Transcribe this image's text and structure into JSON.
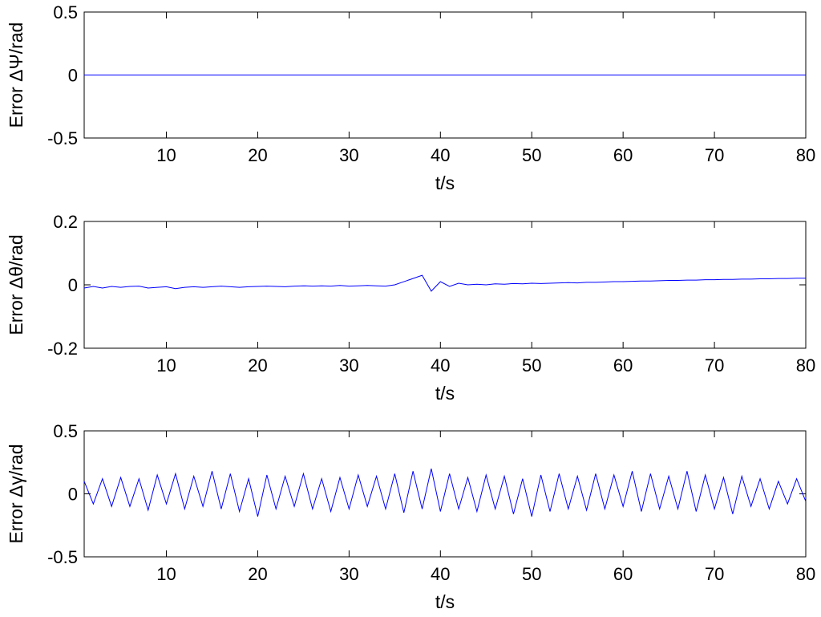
{
  "figure": {
    "background": "#ffffff",
    "line_color": "#0000ff"
  },
  "chart_data": [
    {
      "type": "line",
      "xlabel": "t/s",
      "ylabel": "Error ΔΨ/rad",
      "xlim": [
        1,
        80
      ],
      "ylim": [
        -0.5,
        0.5
      ],
      "xticks": [
        10,
        20,
        30,
        40,
        50,
        60,
        70,
        80
      ],
      "yticks": [
        -0.5,
        0,
        0.5
      ],
      "ytick_labels": [
        "-0.5",
        "0",
        "0.5"
      ],
      "grid": false,
      "series": [
        {
          "color": "#0000ff",
          "x": [
            1,
            80
          ],
          "y": [
            0,
            0
          ]
        }
      ]
    },
    {
      "type": "line",
      "xlabel": "t/s",
      "ylabel": "Error Δθ/rad",
      "xlim": [
        1,
        80
      ],
      "ylim": [
        -0.2,
        0.2
      ],
      "xticks": [
        10,
        20,
        30,
        40,
        50,
        60,
        70,
        80
      ],
      "yticks": [
        -0.2,
        0,
        0.2
      ],
      "ytick_labels": [
        "-0.2",
        "0",
        "0.2"
      ],
      "grid": false,
      "series": [
        {
          "color": "#0000ff",
          "x": [
            1,
            2,
            3,
            4,
            5,
            6,
            7,
            8,
            9,
            10,
            11,
            12,
            13,
            14,
            15,
            16,
            17,
            18,
            19,
            20,
            21,
            22,
            23,
            24,
            25,
            26,
            27,
            28,
            29,
            30,
            31,
            32,
            33,
            34,
            35,
            36,
            37,
            38,
            39,
            40,
            41,
            42,
            43,
            44,
            45,
            46,
            47,
            48,
            49,
            50,
            51,
            52,
            53,
            54,
            55,
            56,
            57,
            58,
            59,
            60,
            61,
            62,
            63,
            64,
            65,
            66,
            67,
            68,
            69,
            70,
            71,
            72,
            73,
            74,
            75,
            76,
            77,
            78,
            79,
            80
          ],
          "y": [
            -0.01,
            -0.005,
            -0.01,
            -0.005,
            -0.008,
            -0.005,
            -0.004,
            -0.01,
            -0.008,
            -0.006,
            -0.012,
            -0.008,
            -0.006,
            -0.008,
            -0.006,
            -0.004,
            -0.006,
            -0.008,
            -0.006,
            -0.005,
            -0.004,
            -0.005,
            -0.006,
            -0.004,
            -0.003,
            -0.004,
            -0.003,
            -0.004,
            -0.002,
            -0.004,
            -0.003,
            -0.002,
            -0.003,
            -0.004,
            0.0,
            0.01,
            0.02,
            0.03,
            -0.02,
            0.01,
            -0.005,
            0.005,
            0.0,
            0.002,
            0.0,
            0.003,
            0.002,
            0.004,
            0.003,
            0.005,
            0.004,
            0.005,
            0.006,
            0.007,
            0.006,
            0.008,
            0.008,
            0.009,
            0.01,
            0.01,
            0.011,
            0.012,
            0.012,
            0.013,
            0.014,
            0.014,
            0.015,
            0.015,
            0.016,
            0.016,
            0.017,
            0.017,
            0.018,
            0.018,
            0.019,
            0.019,
            0.02,
            0.02,
            0.021,
            0.021
          ]
        }
      ]
    },
    {
      "type": "line",
      "xlabel": "t/s",
      "ylabel": "Error Δγ/rad",
      "xlim": [
        1,
        80
      ],
      "ylim": [
        -0.5,
        0.5
      ],
      "xticks": [
        10,
        20,
        30,
        40,
        50,
        60,
        70,
        80
      ],
      "yticks": [
        -0.5,
        0,
        0.5
      ],
      "ytick_labels": [
        "-0.5",
        "0",
        "0.5"
      ],
      "grid": false,
      "series": [
        {
          "color": "#0000ff",
          "x": [
            1,
            2,
            3,
            4,
            5,
            6,
            7,
            8,
            9,
            10,
            11,
            12,
            13,
            14,
            15,
            16,
            17,
            18,
            19,
            20,
            21,
            22,
            23,
            24,
            25,
            26,
            27,
            28,
            29,
            30,
            31,
            32,
            33,
            34,
            35,
            36,
            37,
            38,
            39,
            40,
            41,
            42,
            43,
            44,
            45,
            46,
            47,
            48,
            49,
            50,
            51,
            52,
            53,
            54,
            55,
            56,
            57,
            58,
            59,
            60,
            61,
            62,
            63,
            64,
            65,
            66,
            67,
            68,
            69,
            70,
            71,
            72,
            73,
            74,
            75,
            76,
            77,
            78,
            79,
            80
          ],
          "y": [
            0.1,
            -0.08,
            0.12,
            -0.1,
            0.13,
            -0.1,
            0.12,
            -0.13,
            0.15,
            -0.08,
            0.16,
            -0.12,
            0.14,
            -0.1,
            0.18,
            -0.12,
            0.16,
            -0.14,
            0.12,
            -0.18,
            0.15,
            -0.12,
            0.14,
            -0.1,
            0.16,
            -0.12,
            0.12,
            -0.14,
            0.13,
            -0.12,
            0.15,
            -0.1,
            0.14,
            -0.12,
            0.16,
            -0.15,
            0.18,
            -0.12,
            0.2,
            -0.14,
            0.16,
            -0.12,
            0.13,
            -0.14,
            0.15,
            -0.12,
            0.14,
            -0.16,
            0.12,
            -0.18,
            0.15,
            -0.14,
            0.16,
            -0.12,
            0.14,
            -0.13,
            0.16,
            -0.12,
            0.15,
            -0.1,
            0.18,
            -0.14,
            0.16,
            -0.12,
            0.14,
            -0.12,
            0.18,
            -0.14,
            0.15,
            -0.12,
            0.13,
            -0.16,
            0.14,
            -0.1,
            0.12,
            -0.12,
            0.1,
            -0.08,
            0.12,
            -0.06
          ]
        }
      ]
    }
  ]
}
